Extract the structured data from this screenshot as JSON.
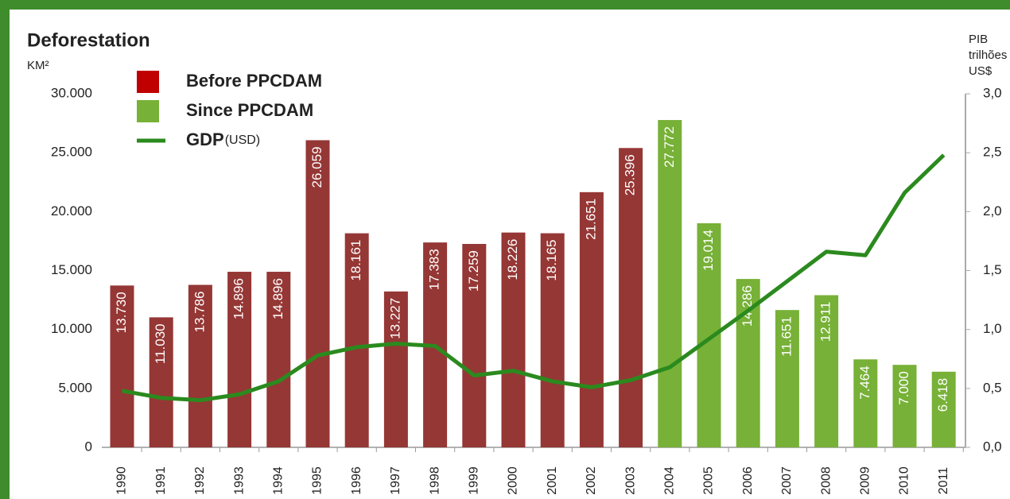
{
  "chart_data": {
    "type": "bar",
    "title": "Deforestation",
    "ylabel": "KM²",
    "y2label": [
      "PIB",
      "trilhões",
      "US$"
    ],
    "categories": [
      "1990",
      "1991",
      "1992",
      "1993",
      "1994",
      "1995",
      "1996",
      "1997",
      "1998",
      "1999",
      "2000",
      "2001",
      "2002",
      "2003",
      "2004",
      "2005",
      "2006",
      "2007",
      "2008",
      "2009",
      "2010",
      "2011"
    ],
    "series": [
      {
        "name": "Before PPCDAM",
        "type": "bar",
        "color": "#953735",
        "legend_color": "#c00000",
        "values": [
          13730,
          11030,
          13786,
          14896,
          14896,
          26059,
          18161,
          13227,
          17383,
          17259,
          18226,
          18165,
          21651,
          25396,
          null,
          null,
          null,
          null,
          null,
          null,
          null,
          null
        ],
        "value_labels": [
          "13.730",
          "11.030",
          "13.786",
          "14.896",
          "14.896",
          "26.059",
          "18.161",
          "13.227",
          "17.383",
          "17.259",
          "18.226",
          "18.165",
          "21.651",
          "25.396",
          null,
          null,
          null,
          null,
          null,
          null,
          null,
          null
        ]
      },
      {
        "name": "Since PPCDAM",
        "type": "bar",
        "color": "#77b137",
        "values": [
          null,
          null,
          null,
          null,
          null,
          null,
          null,
          null,
          null,
          null,
          null,
          null,
          null,
          null,
          27772,
          19014,
          14286,
          11651,
          12911,
          7464,
          7000,
          6418
        ],
        "value_labels": [
          null,
          null,
          null,
          null,
          null,
          null,
          null,
          null,
          null,
          null,
          null,
          null,
          null,
          null,
          "27.772",
          "19.014",
          "14.286",
          "11.651",
          "12.911",
          "7.464",
          "7.000",
          "6.418"
        ]
      },
      {
        "name": "GDP",
        "unit": "(USD)",
        "type": "line",
        "axis": "y2",
        "color": "#2b8a1e",
        "values": [
          0.48,
          0.42,
          0.4,
          0.45,
          0.56,
          0.78,
          0.85,
          0.88,
          0.86,
          0.61,
          0.65,
          0.56,
          0.51,
          0.57,
          0.68,
          0.92,
          1.16,
          1.41,
          1.66,
          1.63,
          2.16,
          2.48
        ]
      }
    ],
    "ylim": [
      0,
      30000
    ],
    "yticks": [
      {
        "value": 0,
        "label": "0"
      },
      {
        "value": 5000,
        "label": "5.000"
      },
      {
        "value": 10000,
        "label": "10.000"
      },
      {
        "value": 15000,
        "label": "15.000"
      },
      {
        "value": 20000,
        "label": "20.000"
      },
      {
        "value": 25000,
        "label": "25.000"
      },
      {
        "value": 30000,
        "label": "30.000"
      }
    ],
    "y2lim": [
      0,
      3
    ],
    "y2ticks": [
      {
        "value": 0,
        "label": "0,0"
      },
      {
        "value": 0.5,
        "label": "0,5"
      },
      {
        "value": 1,
        "label": "1,0"
      },
      {
        "value": 1.5,
        "label": "1,5"
      },
      {
        "value": 2,
        "label": "2,0"
      },
      {
        "value": 2.5,
        "label": "2,5"
      },
      {
        "value": 3,
        "label": "3,0"
      }
    ],
    "grid": false
  }
}
